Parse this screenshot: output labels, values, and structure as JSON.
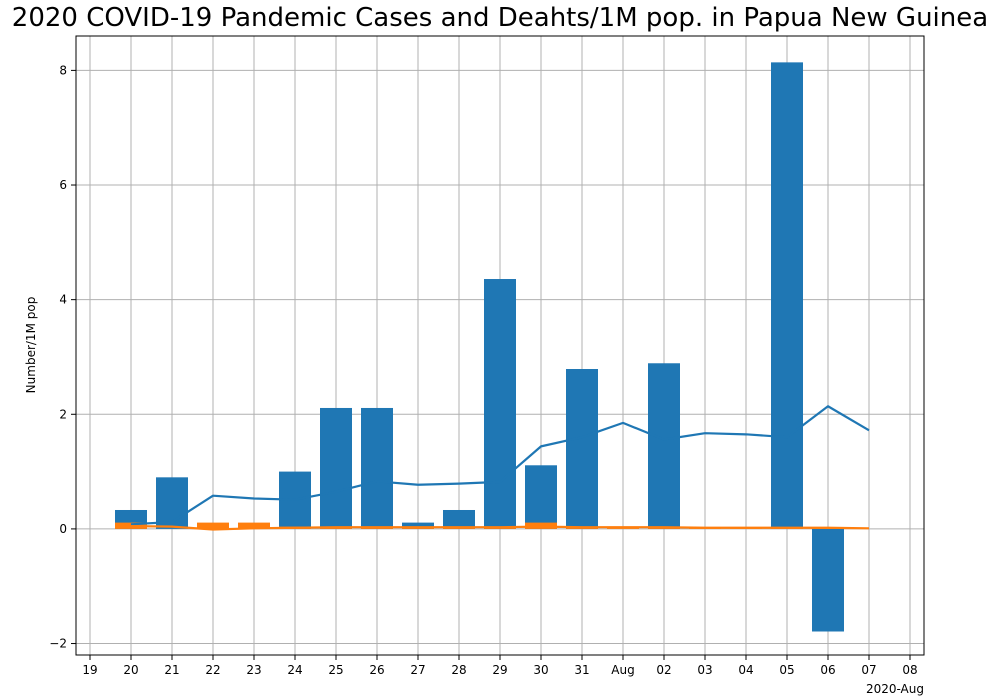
{
  "chart_data": {
    "type": "bar",
    "title": "2020 COVID-19 Pandemic Cases and Deahts/1M pop. in Papua New Guinea",
    "xlabel": "",
    "ylabel": "Number/1M pop",
    "x_corner_label": "2020-Aug",
    "x_ticks": [
      "19",
      "20",
      "21",
      "22",
      "23",
      "24",
      "25",
      "26",
      "27",
      "28",
      "29",
      "30",
      "31",
      "Aug",
      "02",
      "03",
      "04",
      "05",
      "06",
      "07",
      "08"
    ],
    "categories": [
      "20",
      "21",
      "22",
      "23",
      "24",
      "25",
      "26",
      "27",
      "28",
      "29",
      "30",
      "31",
      "Aug",
      "02",
      "03",
      "04",
      "05",
      "06",
      "07"
    ],
    "y_ticks": [
      -2,
      0,
      2,
      4,
      6,
      8
    ],
    "y_tick_labels": [
      "−2",
      "0",
      "2",
      "4",
      "6",
      "8"
    ],
    "ylim": [
      -2.2,
      8.6
    ],
    "grid": true,
    "series": [
      {
        "kind": "bar",
        "color": "#1f77b4",
        "values": [
          0.33,
          0.9,
          0,
          0,
          1.0,
          2.11,
          2.11,
          0.11,
          0.33,
          4.36,
          1.11,
          2.79,
          0,
          2.89,
          0,
          0,
          8.14,
          -1.79,
          0
        ]
      },
      {
        "kind": "bar",
        "color": "#ff7f0e",
        "values": [
          0.11,
          0,
          0.11,
          0.11,
          0.04,
          0.04,
          0.04,
          0.04,
          0.04,
          0.04,
          0.11,
          0.02,
          0.02,
          0.02,
          0.02,
          0.02,
          0.02,
          0.02,
          0
        ]
      },
      {
        "kind": "line",
        "color": "#1f77b4",
        "values": [
          0.08,
          0.12,
          0.58,
          0.53,
          0.51,
          0.65,
          0.83,
          0.77,
          0.79,
          0.82,
          1.44,
          1.6,
          1.85,
          1.56,
          1.67,
          1.65,
          1.6,
          2.14,
          1.72
        ]
      },
      {
        "kind": "line",
        "color": "#ff7f0e",
        "values": [
          0.05,
          0.04,
          -0.01,
          0.01,
          0.02,
          0.03,
          0.03,
          0.03,
          0.03,
          0.03,
          0.04,
          0.03,
          0.03,
          0.03,
          0.02,
          0.02,
          0.02,
          0.02,
          0.01
        ]
      }
    ]
  }
}
